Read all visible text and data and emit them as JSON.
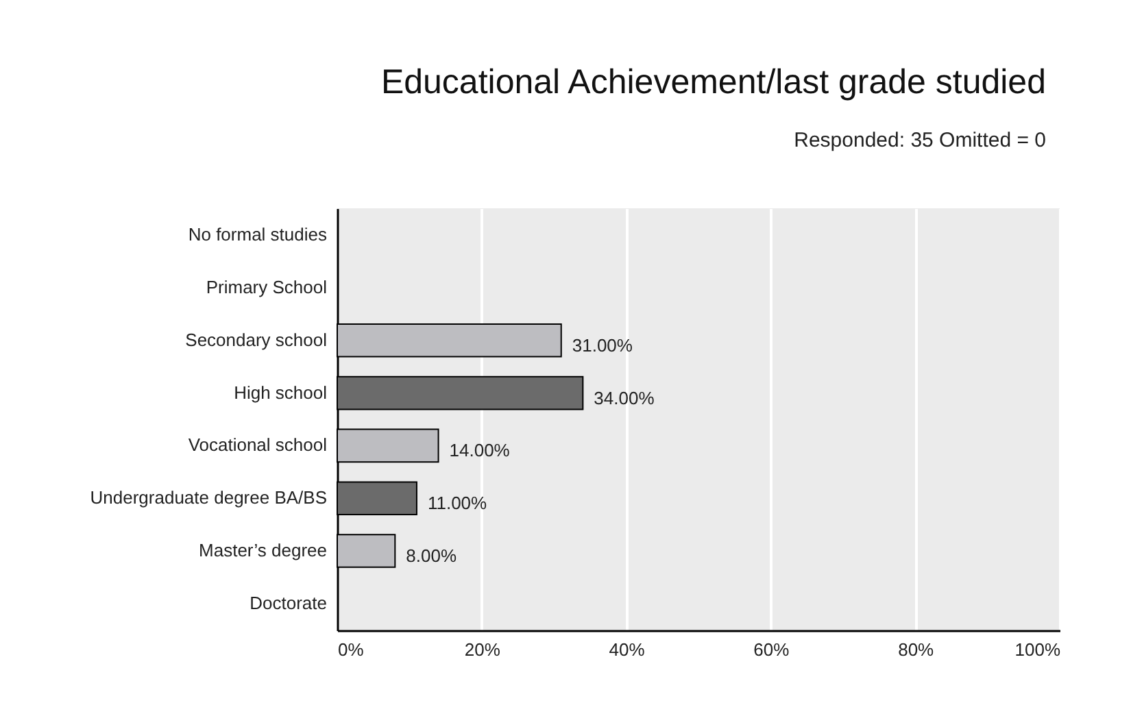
{
  "chart_data": {
    "type": "bar",
    "orientation": "horizontal",
    "title": "Educational Achievement/last grade studied",
    "subtitle": "Responded: 35 Omitted = 0",
    "categories": [
      "No formal studies",
      "Primary School",
      "Secondary school",
      "High school",
      "Vocational school",
      "Undergraduate degree BA/BS",
      "Master’s degree",
      "Doctorate"
    ],
    "values": [
      null,
      null,
      31,
      34,
      14,
      11,
      8,
      null
    ],
    "value_labels": [
      null,
      null,
      "31.00%",
      "34.00%",
      "14.00%",
      "11.00%",
      "8.00%",
      null
    ],
    "colors": [
      "#bdbdc1",
      "#bdbdc1",
      "#bdbdc1",
      "#6b6b6b",
      "#bdbdc1",
      "#6b6b6b",
      "#bdbdc1",
      "#bdbdc1"
    ],
    "xlim": [
      0,
      100
    ],
    "xticks": [
      {
        "value": 0,
        "label": "0%"
      },
      {
        "value": 20,
        "label": "20%"
      },
      {
        "value": 40,
        "label": "40%"
      },
      {
        "value": 60,
        "label": "60%"
      },
      {
        "value": 80,
        "label": "80%"
      },
      {
        "value": 100,
        "label": "100%"
      }
    ],
    "grid": "x"
  }
}
